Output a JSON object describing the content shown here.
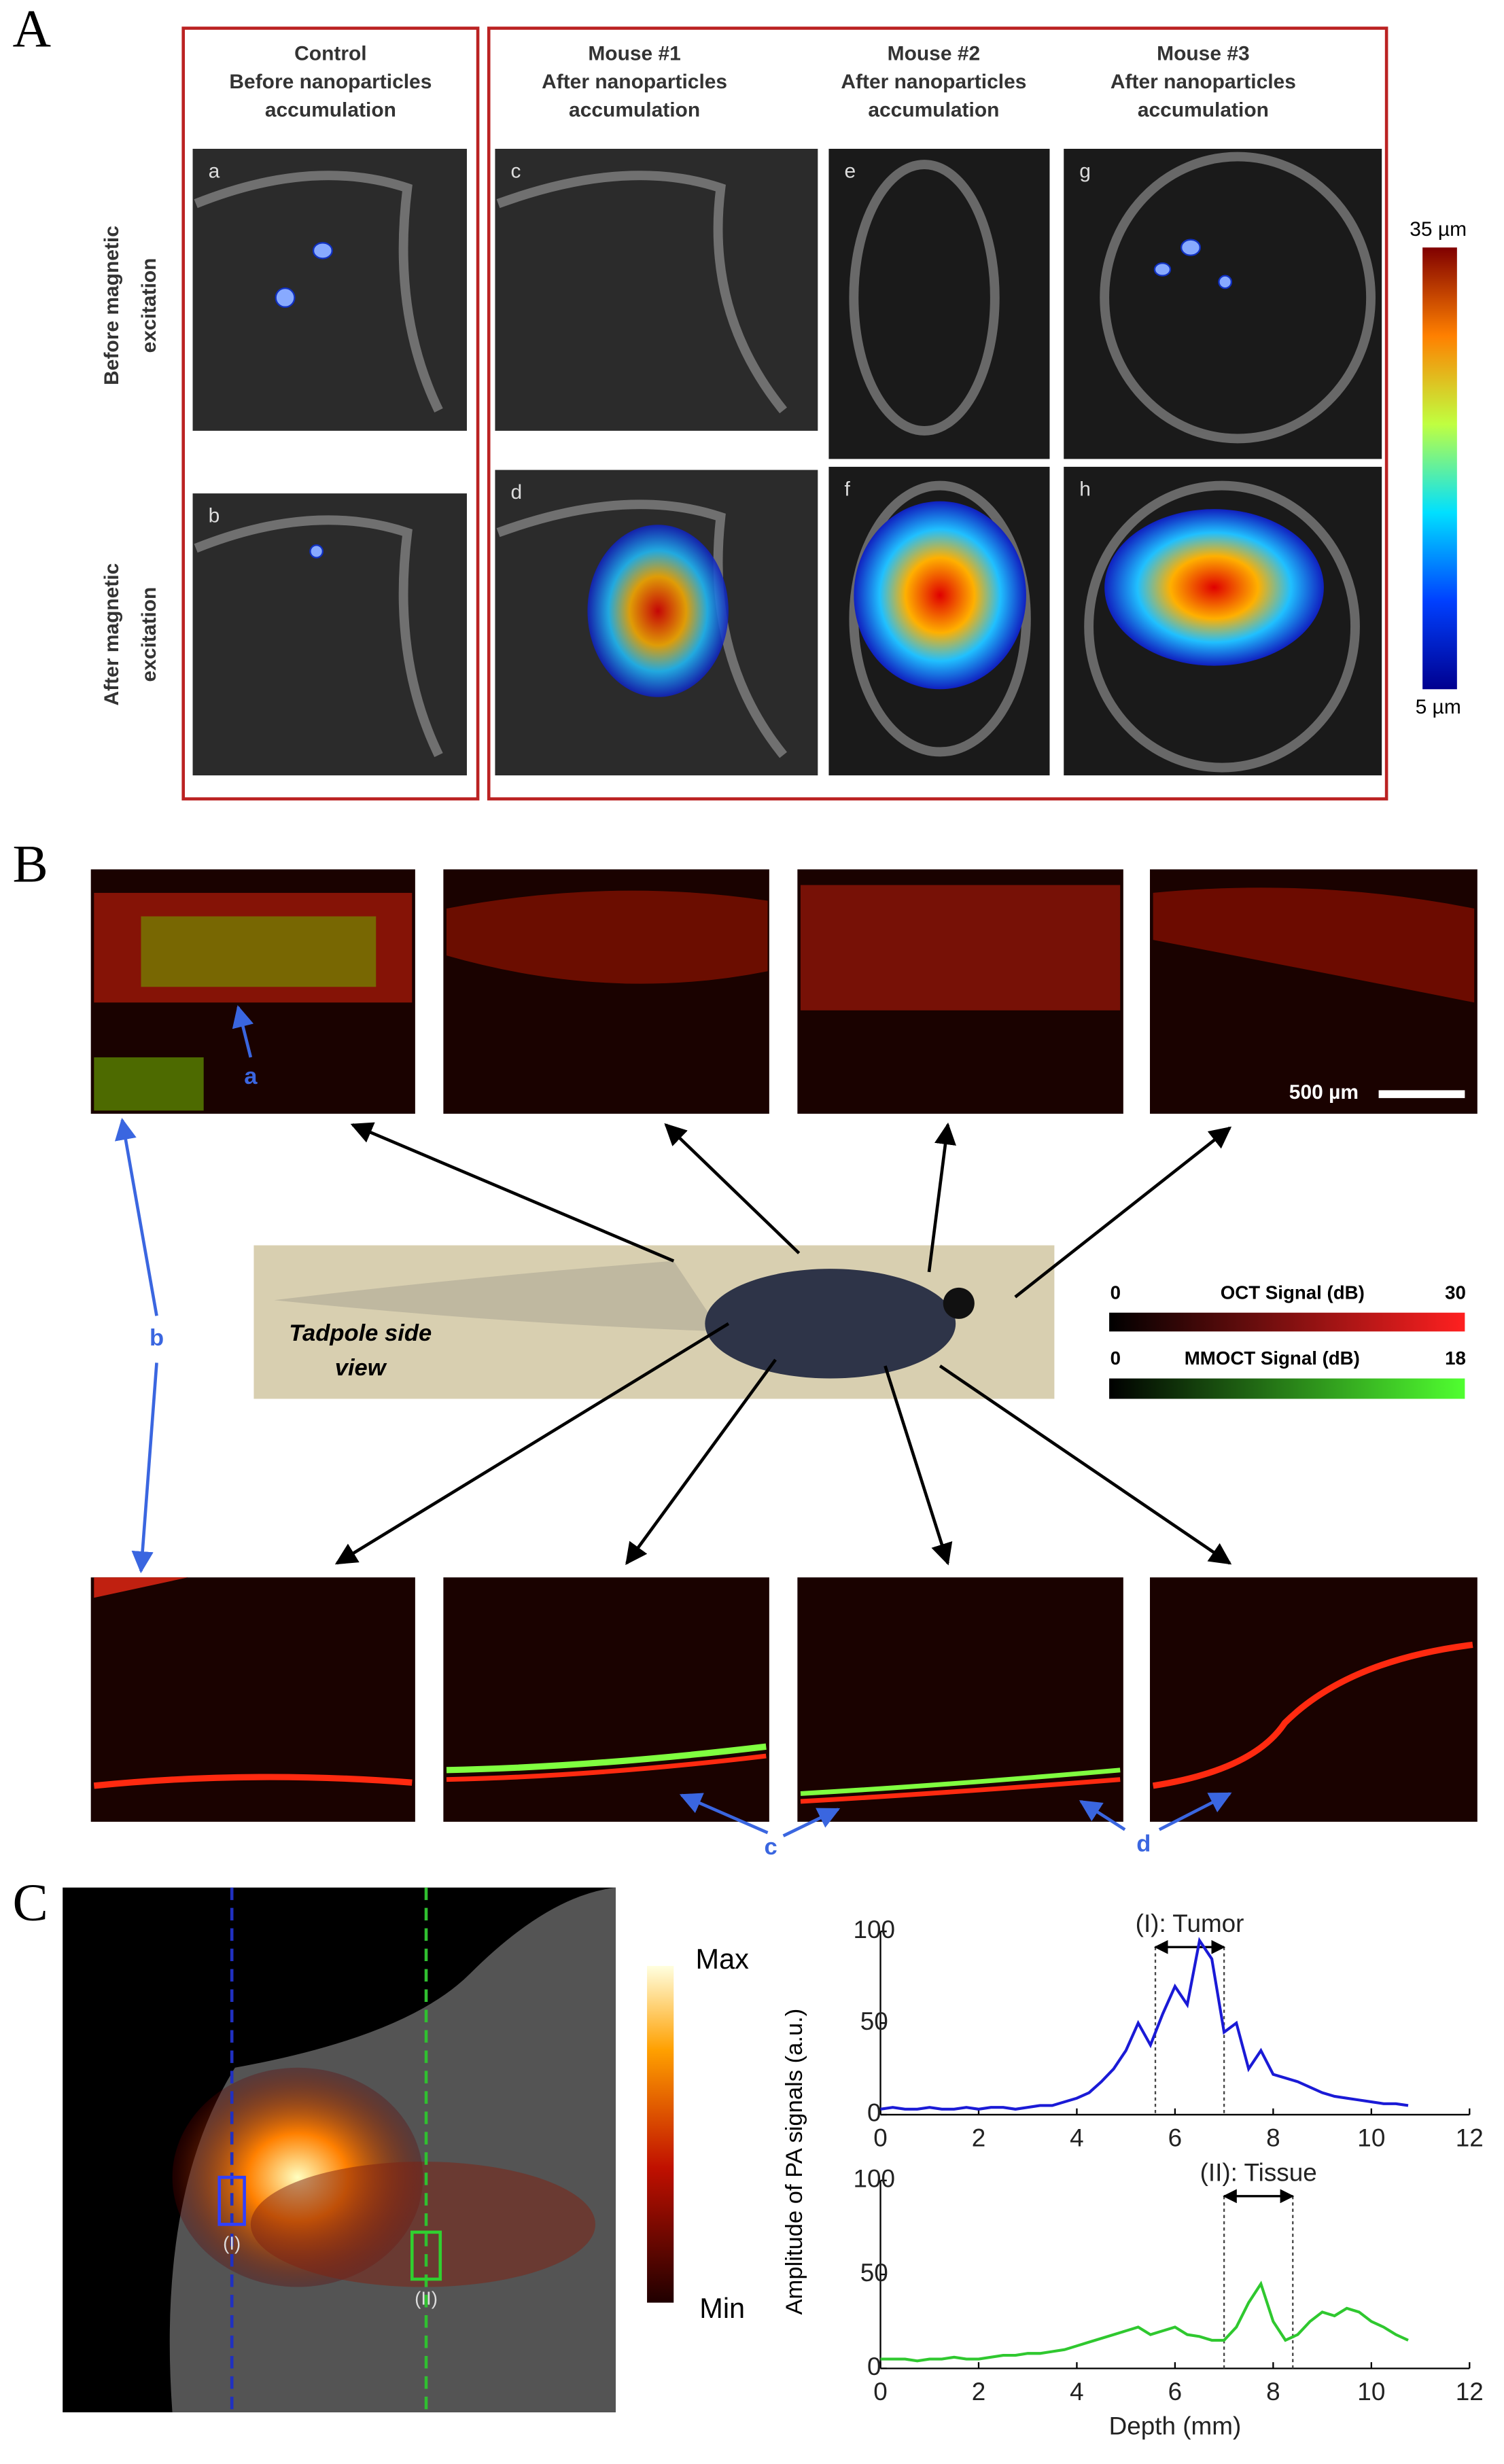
{
  "panel_a": {
    "label": "A",
    "columns": [
      [
        "Control",
        "Before nanoparticles",
        "accumulation"
      ],
      [
        "Mouse #1",
        "After nanoparticles",
        "accumulation"
      ],
      [
        "Mouse #2",
        "After nanoparticles",
        "accumulation"
      ],
      [
        "Mouse #3",
        "After nanoparticles",
        "accumulation"
      ]
    ],
    "rows": [
      [
        "Before magnetic",
        "excitation"
      ],
      [
        "After magnetic",
        "excitation"
      ]
    ],
    "subpanels": [
      "a",
      "b",
      "c",
      "d",
      "e",
      "f",
      "g",
      "h"
    ],
    "colorbar": {
      "max": "35 µm",
      "min": "5 µm"
    }
  },
  "panel_b": {
    "label": "B",
    "callouts": [
      "a",
      "b",
      "c",
      "d"
    ],
    "scale_bar": "500 µm",
    "photo_caption": [
      "Tadpole side",
      "view"
    ],
    "oct": {
      "min": "0",
      "title": "OCT Signal (dB)",
      "max": "30"
    },
    "mmoct": {
      "min": "0",
      "title": "MMOCT Signal (dB)",
      "max": "18"
    }
  },
  "panel_c": {
    "label": "C",
    "colorbar": {
      "max": "Max",
      "min": "Min"
    },
    "roi_labels": [
      "(I)",
      "(II)"
    ],
    "ylabel": "Amplitude of PA signals (a.u.)"
  },
  "chart_data": [
    {
      "type": "line",
      "annotation": {
        "text": "(I): Tumor",
        "x0": 5.6,
        "x1": 7.0
      },
      "x": [
        0,
        0.25,
        0.5,
        0.75,
        1,
        1.25,
        1.5,
        1.75,
        2,
        2.25,
        2.5,
        2.75,
        3,
        3.25,
        3.5,
        3.75,
        4,
        4.25,
        4.5,
        4.75,
        5,
        5.25,
        5.5,
        5.75,
        6,
        6.25,
        6.5,
        6.75,
        7,
        7.25,
        7.5,
        7.75,
        8,
        8.25,
        8.5,
        8.75,
        9,
        9.25,
        9.5,
        9.75,
        10,
        10.25,
        10.5,
        10.75
      ],
      "series": [
        {
          "color": "#1a1ad6",
          "values": [
            3,
            4,
            3,
            3,
            4,
            3,
            3,
            4,
            3,
            4,
            4,
            3,
            4,
            5,
            5,
            7,
            9,
            12,
            18,
            25,
            35,
            50,
            38,
            55,
            70,
            60,
            95,
            85,
            45,
            50,
            25,
            35,
            22,
            20,
            18,
            15,
            12,
            10,
            9,
            8,
            7,
            6,
            6,
            5
          ]
        }
      ],
      "xlim": [
        0,
        12
      ],
      "xticks": [
        0,
        2,
        4,
        6,
        8,
        10,
        12
      ],
      "ylim": [
        0,
        100
      ],
      "yticks": [
        0,
        50,
        100
      ]
    },
    {
      "type": "line",
      "annotation": {
        "text": "(II): Tissue",
        "x0": 7.0,
        "x1": 8.4
      },
      "xlabel": "Depth (mm)",
      "x": [
        0,
        0.25,
        0.5,
        0.75,
        1,
        1.25,
        1.5,
        1.75,
        2,
        2.25,
        2.5,
        2.75,
        3,
        3.25,
        3.5,
        3.75,
        4,
        4.25,
        4.5,
        4.75,
        5,
        5.25,
        5.5,
        5.75,
        6,
        6.25,
        6.5,
        6.75,
        7,
        7.25,
        7.5,
        7.75,
        8,
        8.25,
        8.5,
        8.75,
        9,
        9.25,
        9.5,
        9.75,
        10,
        10.25,
        10.5,
        10.75
      ],
      "series": [
        {
          "color": "#2fc82f",
          "values": [
            5,
            5,
            5,
            4,
            5,
            5,
            6,
            5,
            5,
            6,
            7,
            7,
            8,
            8,
            9,
            10,
            12,
            14,
            16,
            18,
            20,
            22,
            18,
            20,
            22,
            18,
            17,
            15,
            15,
            22,
            35,
            45,
            25,
            15,
            18,
            25,
            30,
            28,
            32,
            30,
            25,
            22,
            18,
            15
          ]
        }
      ],
      "xlim": [
        0,
        12
      ],
      "xticks": [
        0,
        2,
        4,
        6,
        8,
        10,
        12
      ],
      "ylim": [
        0,
        100
      ],
      "yticks": [
        0,
        50,
        100
      ]
    }
  ]
}
